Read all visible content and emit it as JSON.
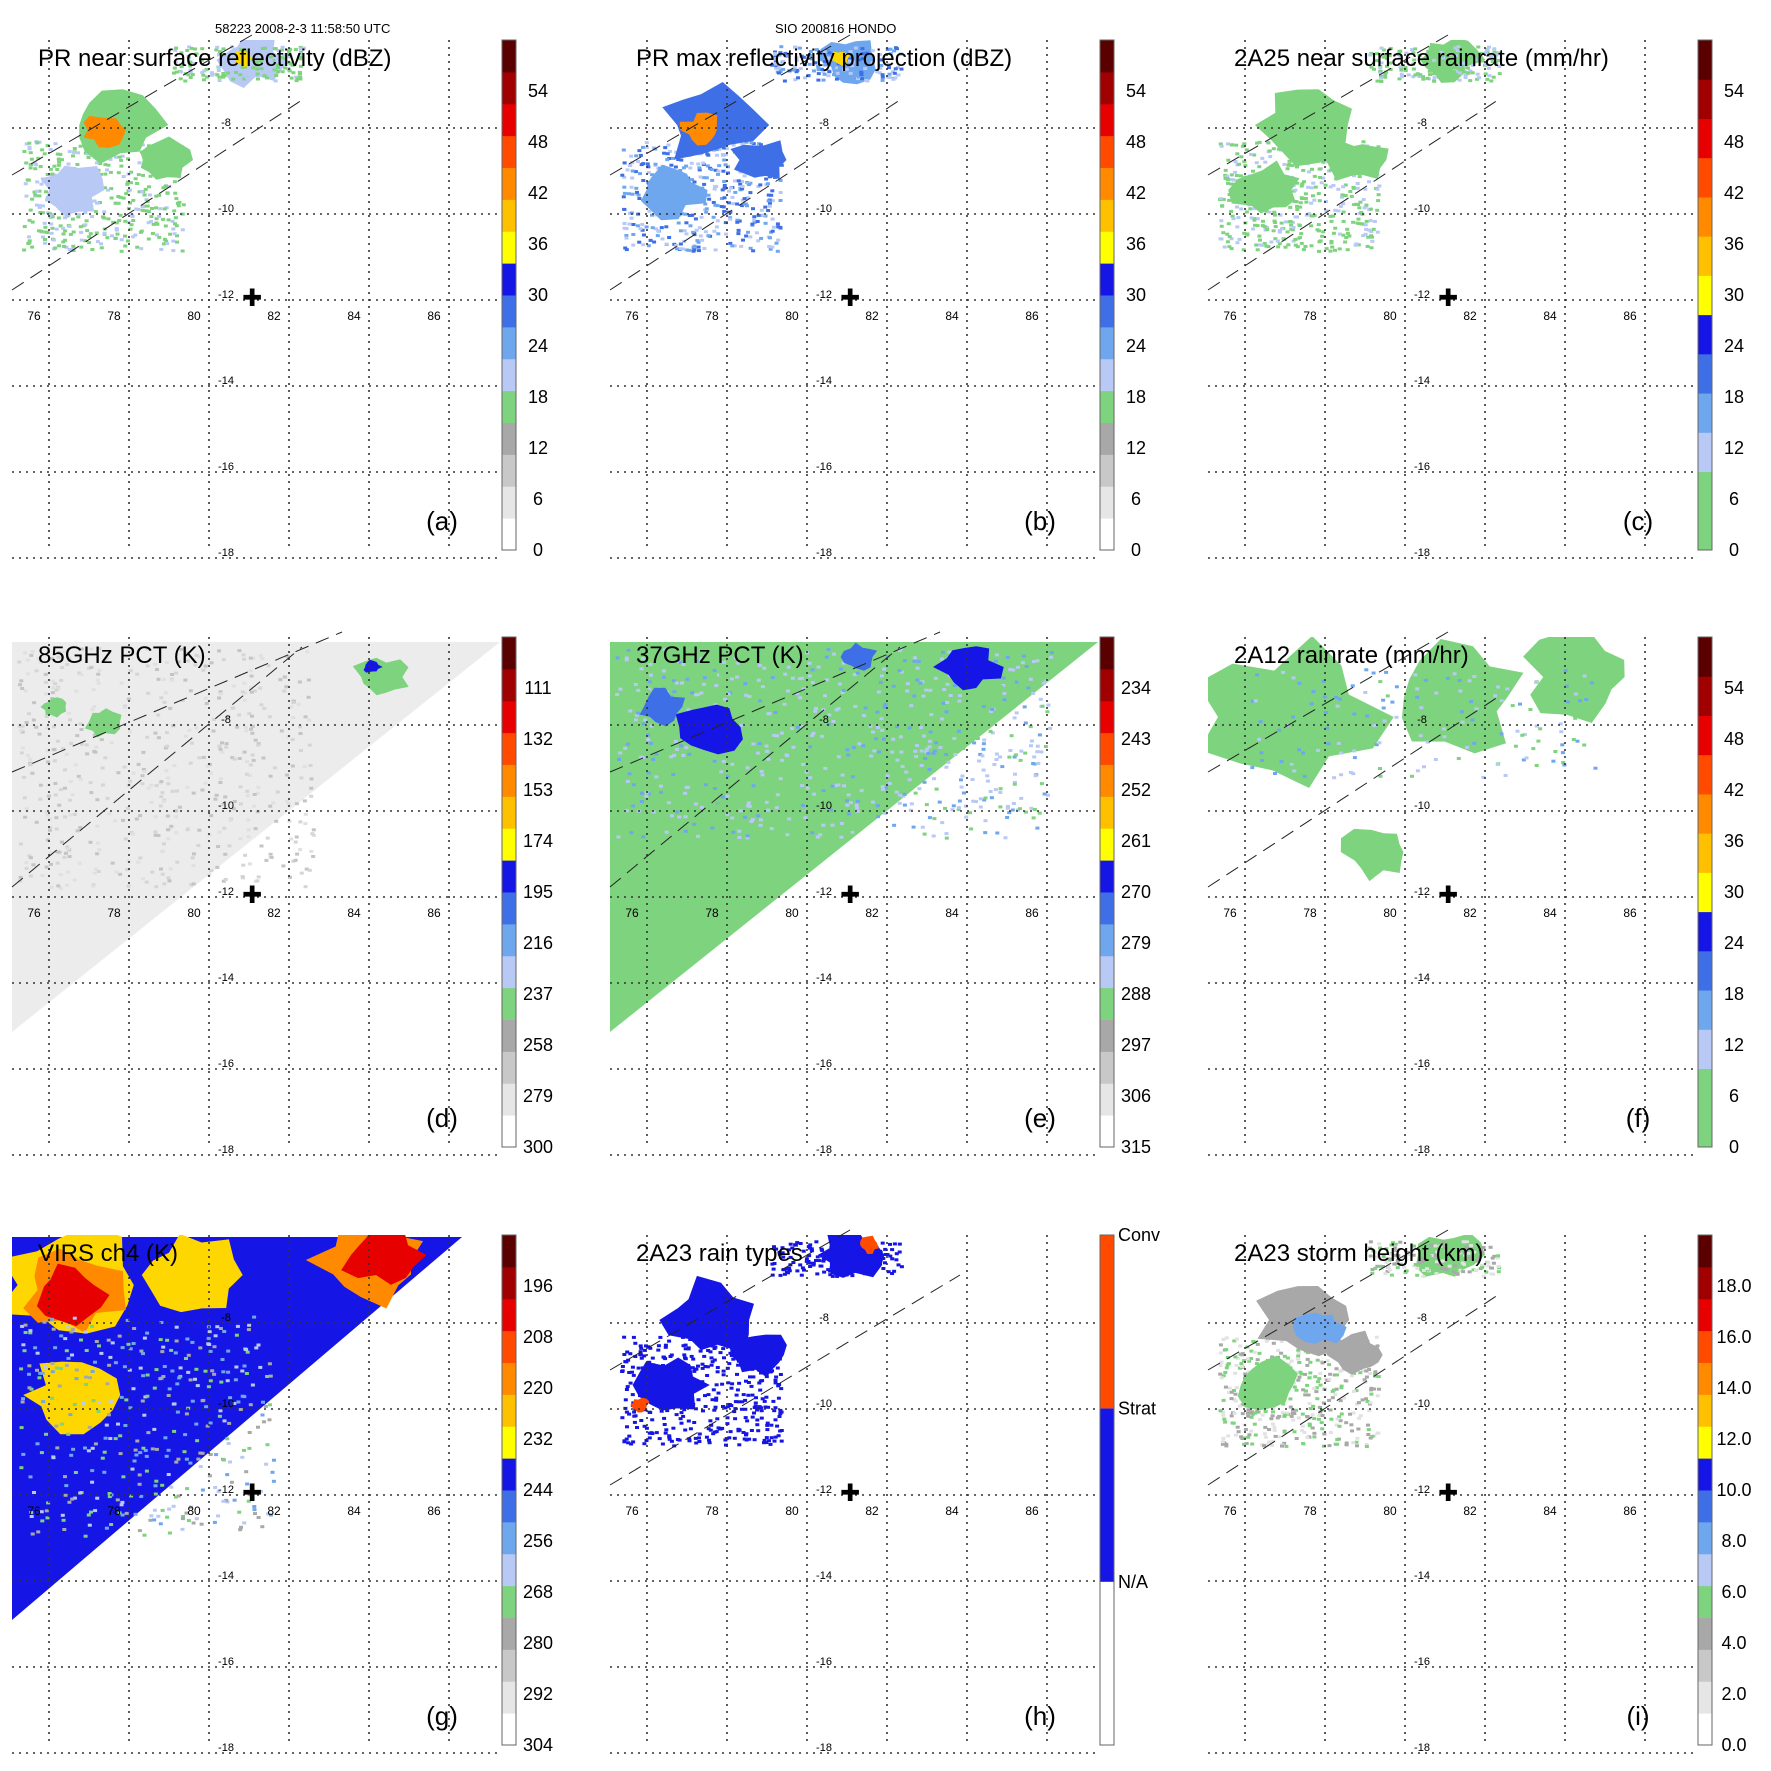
{
  "header": {
    "left": "58223 2008-2-3 11:58:50 UTC",
    "center": "SIO 200816 HONDO"
  },
  "lon_labels": [
    "76",
    "78",
    "80",
    "82",
    "84",
    "86"
  ],
  "lat_labels": [
    "-8",
    "-10",
    "-12",
    "-14",
    "-16",
    "-18"
  ],
  "storm_marker": "✚",
  "panels": [
    {
      "id": "a",
      "title": "PR near surface reflectivity (dBZ)",
      "label": "(a)",
      "field": "pr-near-surface-reflectivity",
      "colorbar": {
        "ticks": [
          "0",
          "6",
          "12",
          "18",
          "24",
          "30",
          "36",
          "42",
          "48",
          "54"
        ],
        "colors": [
          "#ffffff",
          "#e6e6e6",
          "#c8c8c8",
          "#a8a8a8",
          "#7ed37e",
          "#b9c9f6",
          "#6fa7ee",
          "#3e6fe6",
          "#1515e6",
          "#ffff00",
          "#ffc000",
          "#ff8a00",
          "#ff4a00",
          "#e60000",
          "#a00000",
          "#5a0000"
        ]
      }
    },
    {
      "id": "b",
      "title": "PR max reflectivity projection (dBZ)",
      "label": "(b)",
      "field": "pr-max-reflectivity",
      "colorbar": {
        "ticks": [
          "0",
          "6",
          "12",
          "18",
          "24",
          "30",
          "36",
          "42",
          "48",
          "54"
        ],
        "colors": [
          "#ffffff",
          "#e6e6e6",
          "#c8c8c8",
          "#a8a8a8",
          "#7ed37e",
          "#b9c9f6",
          "#6fa7ee",
          "#3e6fe6",
          "#1515e6",
          "#ffff00",
          "#ffc000",
          "#ff8a00",
          "#ff4a00",
          "#e60000",
          "#a00000",
          "#5a0000"
        ]
      }
    },
    {
      "id": "c",
      "title": "2A25 near surface rainrate (mm/hr)",
      "label": "(c)",
      "field": "2a25-rainrate",
      "colorbar": {
        "ticks": [
          "0",
          "6",
          "12",
          "18",
          "24",
          "30",
          "36",
          "42",
          "48",
          "54"
        ],
        "colors": [
          "#7ed37e",
          "#7ed37e",
          "#b9c9f6",
          "#6fa7ee",
          "#3e6fe6",
          "#1515e6",
          "#ffff00",
          "#ffc000",
          "#ff8a00",
          "#ff4a00",
          "#e60000",
          "#a00000",
          "#5a0000"
        ]
      }
    },
    {
      "id": "d",
      "title": "85GHz PCT (K)",
      "label": "(d)",
      "field": "85ghz-pct",
      "colorbar": {
        "ticks": [
          "300",
          "279",
          "258",
          "237",
          "216",
          "195",
          "174",
          "153",
          "132",
          "111"
        ],
        "colors": [
          "#ffffff",
          "#e6e6e6",
          "#c8c8c8",
          "#a8a8a8",
          "#7ed37e",
          "#b9c9f6",
          "#6fa7ee",
          "#3e6fe6",
          "#1515e6",
          "#ffff00",
          "#ffc000",
          "#ff8a00",
          "#ff4a00",
          "#e60000",
          "#a00000",
          "#5a0000"
        ]
      }
    },
    {
      "id": "e",
      "title": "37GHz PCT (K)",
      "label": "(e)",
      "field": "37ghz-pct",
      "colorbar": {
        "ticks": [
          "315",
          "306",
          "297",
          "288",
          "279",
          "270",
          "261",
          "252",
          "243",
          "234"
        ],
        "colors": [
          "#ffffff",
          "#e6e6e6",
          "#c8c8c8",
          "#a8a8a8",
          "#7ed37e",
          "#b9c9f6",
          "#6fa7ee",
          "#3e6fe6",
          "#1515e6",
          "#ffff00",
          "#ffc000",
          "#ff8a00",
          "#ff4a00",
          "#e60000",
          "#a00000",
          "#5a0000"
        ]
      }
    },
    {
      "id": "f",
      "title": "2A12 rainrate (mm/hr)",
      "label": "(f)",
      "field": "2a12-rainrate",
      "colorbar": {
        "ticks": [
          "0",
          "6",
          "12",
          "18",
          "24",
          "30",
          "36",
          "42",
          "48",
          "54"
        ],
        "colors": [
          "#7ed37e",
          "#7ed37e",
          "#b9c9f6",
          "#6fa7ee",
          "#3e6fe6",
          "#1515e6",
          "#ffff00",
          "#ffc000",
          "#ff8a00",
          "#ff4a00",
          "#e60000",
          "#a00000",
          "#5a0000"
        ]
      }
    },
    {
      "id": "g",
      "title": "VIRS ch4 (K)",
      "label": "(g)",
      "field": "virs-ch4",
      "colorbar": {
        "ticks": [
          "304",
          "292",
          "280",
          "268",
          "256",
          "244",
          "232",
          "220",
          "208",
          "196"
        ],
        "colors": [
          "#ffffff",
          "#e6e6e6",
          "#c8c8c8",
          "#a8a8a8",
          "#7ed37e",
          "#b9c9f6",
          "#6fa7ee",
          "#3e6fe6",
          "#1515e6",
          "#ffff00",
          "#ffc000",
          "#ff8a00",
          "#ff4a00",
          "#e60000",
          "#a00000",
          "#5a0000"
        ]
      }
    },
    {
      "id": "h",
      "title": "2A23 rain types",
      "label": "(h)",
      "field": "2a23-rain-types",
      "colorbar": {
        "categories": [
          "N/A",
          "Strat",
          "Conv"
        ],
        "colors": [
          "#ffffff",
          "#1515e6",
          "#ff4a00"
        ]
      }
    },
    {
      "id": "i",
      "title": "2A23 storm height (km)",
      "label": "(i)",
      "field": "2a23-storm-height",
      "colorbar": {
        "ticks": [
          "0.0",
          "2.0",
          "4.0",
          "6.0",
          "8.0",
          "10.0",
          "12.0",
          "14.0",
          "16.0",
          "18.0"
        ],
        "colors": [
          "#ffffff",
          "#e6e6e6",
          "#c8c8c8",
          "#a8a8a8",
          "#7ed37e",
          "#b9c9f6",
          "#6fa7ee",
          "#3e6fe6",
          "#1515e6",
          "#ffff00",
          "#ffc000",
          "#ff8a00",
          "#ff4a00",
          "#e60000",
          "#a00000",
          "#5a0000"
        ]
      }
    }
  ]
}
